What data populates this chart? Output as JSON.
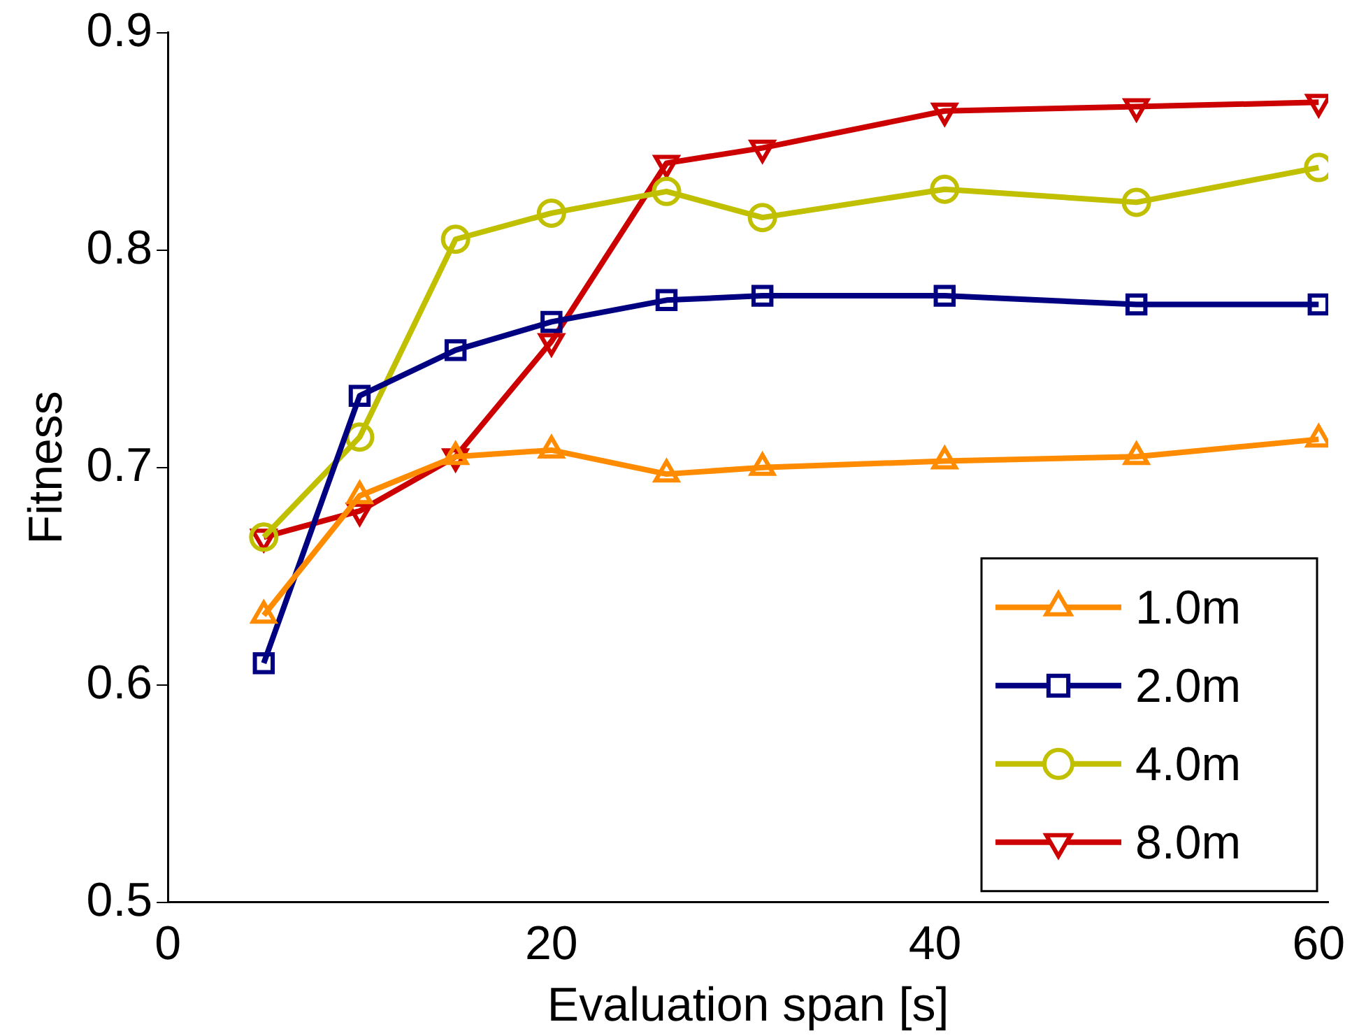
{
  "chart_data": {
    "type": "line",
    "xlabel": "Evaluation span [s]",
    "ylabel": "Fitness",
    "xlim": [
      0,
      60.5
    ],
    "xticks": [
      0,
      20,
      40,
      60
    ],
    "ylim": [
      0.5,
      0.9
    ],
    "yticks": [
      0.5,
      0.6,
      0.7,
      0.8,
      0.9
    ],
    "grid": false,
    "legend": "bottom right",
    "line_style": "solid",
    "series": [
      {
        "name": "1.0m",
        "color": "#ff8c00",
        "marker": "triangle",
        "x": [
          5,
          10,
          15,
          20,
          26,
          31,
          40.5,
          50.5,
          60
        ],
        "values": [
          0.632,
          0.687,
          0.705,
          0.708,
          0.697,
          0.7,
          0.703,
          0.705,
          0.713
        ]
      },
      {
        "name": "2.0m",
        "color": "#000080",
        "marker": "square",
        "x": [
          5,
          10,
          15,
          20,
          26,
          31,
          40.5,
          50.5,
          60
        ],
        "values": [
          0.61,
          0.733,
          0.754,
          0.767,
          0.777,
          0.779,
          0.779,
          0.775,
          0.775
        ]
      },
      {
        "name": "4.0m",
        "color": "#c0c000",
        "marker": "circle",
        "x": [
          5,
          10,
          15,
          20,
          26,
          31,
          40.5,
          50.5,
          60
        ],
        "values": [
          0.668,
          0.714,
          0.805,
          0.817,
          0.827,
          0.815,
          0.828,
          0.822,
          0.838
        ]
      },
      {
        "name": "8.0m",
        "color": "#cc0000",
        "marker": "triangle-down",
        "x": [
          5,
          10,
          15,
          20,
          26,
          31,
          40.5,
          50.5,
          60
        ],
        "values": [
          0.668,
          0.68,
          0.705,
          0.758,
          0.84,
          0.847,
          0.864,
          0.866,
          0.868
        ]
      }
    ]
  }
}
